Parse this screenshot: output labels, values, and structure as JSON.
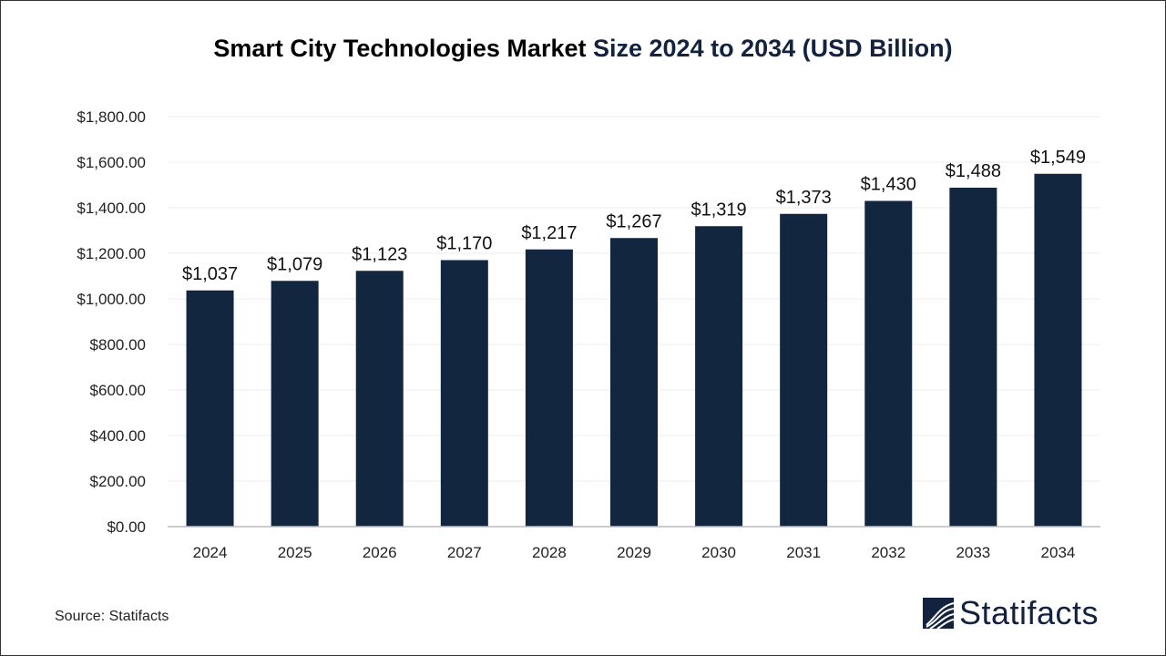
{
  "chart_data": {
    "type": "bar",
    "title_part1": "Smart City Technologies Market",
    "title_part2": "Size 2024 to 2034 (USD Billion)",
    "categories": [
      "2024",
      "2025",
      "2026",
      "2027",
      "2028",
      "2029",
      "2030",
      "2031",
      "2032",
      "2033",
      "2034"
    ],
    "values": [
      1037,
      1079,
      1123,
      1170,
      1217,
      1267,
      1319,
      1373,
      1430,
      1488,
      1549
    ],
    "data_labels": [
      "$1,037",
      "$1,079",
      "$1,123",
      "$1,170",
      "$1,217",
      "$1,267",
      "$1,319",
      "$1,373",
      "$1,430",
      "$1,488",
      "$1,549"
    ],
    "y_ticks": [
      "$0.00",
      "$200.00",
      "$400.00",
      "$600.00",
      "$800.00",
      "$1,000.00",
      "$1,200.00",
      "$1,400.00",
      "$1,600.00",
      "$1,800.00"
    ],
    "ylim": [
      0,
      1800
    ],
    "xlabel": "",
    "ylabel": "",
    "grid": true,
    "bar_color": "#13263f"
  },
  "footer": {
    "source": "Source: Statifacts",
    "logo_text": "Statifacts"
  }
}
